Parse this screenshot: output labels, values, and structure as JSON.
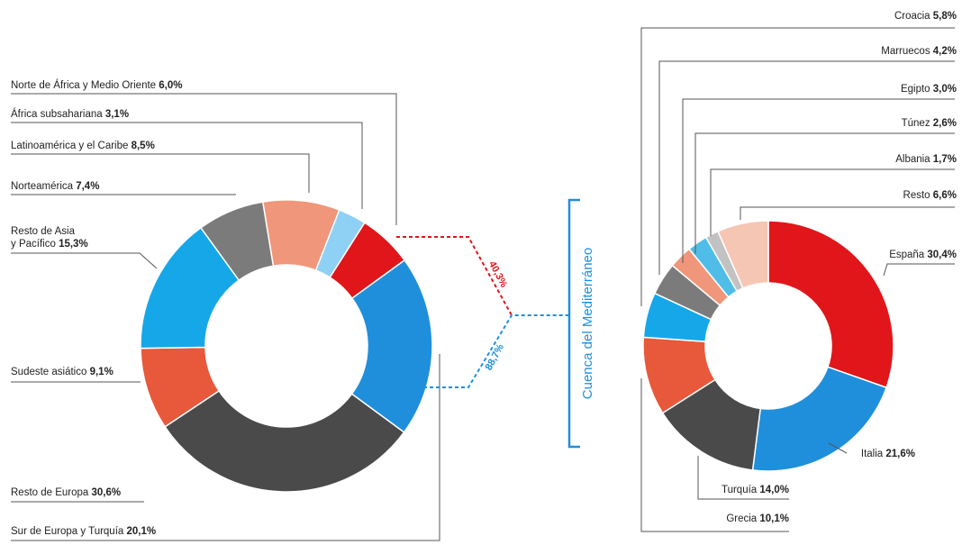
{
  "chart_data": [
    {
      "type": "pie",
      "title": "",
      "slices": [
        {
          "name": "Sur de Europa y Turquía",
          "value": 20.1,
          "label": "Sur de Europa y Turquía",
          "value_text": "20,1%",
          "color": "#1f8fdc"
        },
        {
          "name": "Resto de Europa",
          "value": 30.6,
          "label": "Resto de Europa",
          "value_text": "30,6%",
          "color": "#4a4a4a"
        },
        {
          "name": "Sudeste asiático",
          "value": 9.1,
          "label": "Sudeste asiático",
          "value_text": "9,1%",
          "color": "#e8583a"
        },
        {
          "name": "Resto de Asia y Pacífico",
          "value": 15.3,
          "label": "Resto de Asia",
          "label2": "y Pacífico",
          "value_text": "15,3%",
          "color": "#16a7e8"
        },
        {
          "name": "Norteamérica",
          "value": 7.4,
          "label": "Norteamérica",
          "value_text": "7,4%",
          "color": "#7b7b7b"
        },
        {
          "name": "Latinoamérica y el Caribe",
          "value": 8.5,
          "label": "Latinoamérica y el Caribe",
          "value_text": "8,5%",
          "color": "#f0967a"
        },
        {
          "name": "África subsahariana",
          "value": 3.1,
          "label": "África subsahariana",
          "value_text": "3,1%",
          "color": "#8fd0f5"
        },
        {
          "name": "Norte de África y Medio Oriente",
          "value": 6.0,
          "label": "Norte de África y Medio Oriente",
          "value_text": "6,0%",
          "color": "#e0161a"
        }
      ]
    },
    {
      "type": "pie",
      "title": "",
      "slices": [
        {
          "name": "España",
          "value": 30.4,
          "label": "España",
          "value_text": "30,4%",
          "color": "#e0161a"
        },
        {
          "name": "Italia",
          "value": 21.6,
          "label": "Italia",
          "value_text": "21,6%",
          "color": "#1f8fdc"
        },
        {
          "name": "Turquía",
          "value": 14.0,
          "label": "Turquía",
          "value_text": "14,0%",
          "color": "#4a4a4a"
        },
        {
          "name": "Grecia",
          "value": 10.1,
          "label": "Grecia",
          "value_text": "10,1%",
          "color": "#e8583a"
        },
        {
          "name": "Croacia",
          "value": 5.8,
          "label": "Croacia",
          "value_text": "5,8%",
          "color": "#16a7e8"
        },
        {
          "name": "Marruecos",
          "value": 4.2,
          "label": "Marruecos",
          "value_text": "4,2%",
          "color": "#7b7b7b"
        },
        {
          "name": "Egipto",
          "value": 3.0,
          "label": "Egipto",
          "value_text": "3,0%",
          "color": "#f0967a"
        },
        {
          "name": "Túnez",
          "value": 2.6,
          "label": "Túnez",
          "value_text": "2,6%",
          "color": "#4fbde8"
        },
        {
          "name": "Albania",
          "value": 1.7,
          "label": "Albania",
          "value_text": "1,7%",
          "color": "#c2c2c2"
        },
        {
          "name": "Resto",
          "value": 6.6,
          "label": "Resto",
          "value_text": "6,6%",
          "color": "#f6c6b4"
        }
      ]
    }
  ],
  "connector": {
    "bracket_label": "Cuenca del Mediterráneo",
    "red_label": "40,3%",
    "blue_label": "88,7%",
    "red_color": "#e0161a",
    "blue_color": "#1f8fdc"
  }
}
